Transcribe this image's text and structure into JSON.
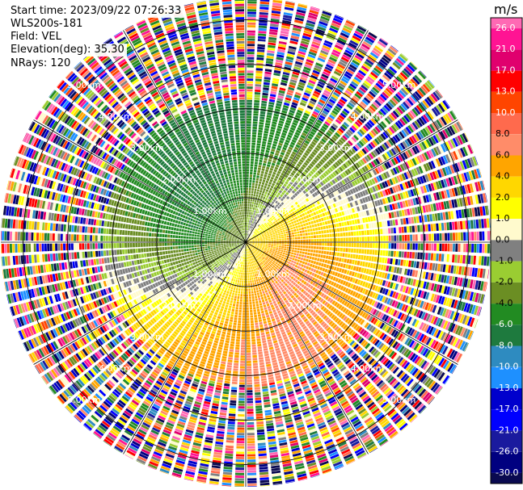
{
  "header": {
    "start_time": "Start time: 2023/09/22 07:26:33",
    "instrument": "WLS200s-181",
    "field": "Field: VEL",
    "elevation": "Elevation(deg): 35.30",
    "nrays": "NRays: 120"
  },
  "chart_data": {
    "type": "heatmap",
    "projection": "polar PPI",
    "title": "",
    "n_rays": 120,
    "range_rings": [
      {
        "label": "1.00km",
        "km": 1.0
      },
      {
        "label": "2.00km",
        "km": 2.0
      },
      {
        "label": "3.00km",
        "km": 3.0
      },
      {
        "label": "4.00km",
        "km": 4.0
      },
      {
        "label": "5.00km",
        "km": 5.0
      }
    ],
    "max_range_km": 5.5,
    "colorbar": {
      "unit": "m/s",
      "ticks": [
        "26.0",
        "21.0",
        "17.0",
        "13.0",
        "10.0",
        "8.0",
        "6.0",
        "4.0",
        "2.0",
        "1.0",
        "0.0",
        "-1.0",
        "-2.0",
        "-4.0",
        "-6.0",
        "-8.0",
        "-10.0",
        "-13.0",
        "-17.0",
        "-21.0",
        "-26.0",
        "-30.0"
      ],
      "colors": [
        "#ff69b4",
        "#ff1493",
        "#e0006e",
        "#ff0000",
        "#ff4500",
        "#ff6a4d",
        "#ff8c69",
        "#ffa500",
        "#ffd700",
        "#ffff00",
        "#fffacd",
        "#808080",
        "#9acd32",
        "#6b8e23",
        "#228b22",
        "#1e7a3e",
        "#2e8bc0",
        "#1e90ff",
        "#0000cd",
        "#0000ff",
        "#1a1a9e",
        "#000080",
        "#0a0a50"
      ]
    },
    "velocity_pattern": {
      "positive_sector": "east/south-east",
      "negative_sector": "west/north-west",
      "noise_beyond_km": 3.2
    }
  }
}
